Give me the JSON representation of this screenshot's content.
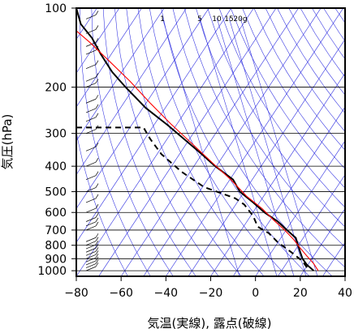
{
  "chart_data": {
    "type": "line",
    "title": "",
    "xlabel": "気温(実線), 露点(破線)",
    "ylabel": "気圧(hPa)",
    "xlim": [
      -80,
      40
    ],
    "ylim": [
      1050,
      100
    ],
    "y_scale": "log",
    "x_ticks": [
      -80,
      -60,
      -40,
      -20,
      0,
      20,
      40
    ],
    "y_ticks": [
      100,
      200,
      300,
      400,
      500,
      600,
      700,
      800,
      900,
      1000
    ],
    "series": [
      {
        "style": "solid",
        "color": "#000000",
        "points": [
          [
            -80,
            100
          ],
          [
            -78,
            115
          ],
          [
            -73,
            130
          ],
          [
            -69,
            150
          ],
          [
            -64,
            175
          ],
          [
            -58,
            200
          ],
          [
            -49,
            240
          ],
          [
            -39,
            280
          ],
          [
            -31,
            320
          ],
          [
            -24,
            360
          ],
          [
            -18,
            400
          ],
          [
            -10,
            450
          ],
          [
            -7,
            500
          ],
          [
            -1,
            550
          ],
          [
            4,
            600
          ],
          [
            10,
            650
          ],
          [
            14,
            700
          ],
          [
            18,
            750
          ],
          [
            19,
            800
          ],
          [
            20,
            850
          ],
          [
            21,
            900
          ],
          [
            23,
            950
          ],
          [
            26,
            1000
          ]
        ]
      },
      {
        "style": "dashed",
        "color": "#000000",
        "points": [
          [
            -80,
            285
          ],
          [
            -50,
            285
          ],
          [
            -47,
            315
          ],
          [
            -42,
            360
          ],
          [
            -33,
            420
          ],
          [
            -23,
            480
          ],
          [
            -9,
            530
          ],
          [
            -5,
            560
          ],
          [
            -1,
            620
          ],
          [
            1,
            680
          ],
          [
            6,
            720
          ],
          [
            10,
            780
          ],
          [
            16,
            850
          ],
          [
            21,
            920
          ],
          [
            24,
            1000
          ]
        ]
      },
      {
        "style": "solid",
        "color": "#ff0000",
        "points": [
          [
            -82,
            118
          ],
          [
            -74,
            135
          ],
          [
            -65,
            160
          ],
          [
            -56,
            190
          ],
          [
            -47,
            230
          ],
          [
            -38,
            275
          ],
          [
            -28,
            330
          ],
          [
            -19,
            390
          ],
          [
            -11,
            450
          ],
          [
            -4,
            520
          ],
          [
            3,
            580
          ],
          [
            8,
            640
          ],
          [
            13,
            700
          ],
          [
            17,
            760
          ],
          [
            20,
            820
          ],
          [
            23,
            880
          ],
          [
            26,
            940
          ],
          [
            28,
            1000
          ]
        ]
      }
    ],
    "mixing_ratio_labels": [
      "1",
      "5",
      "10",
      "15",
      "20g"
    ],
    "wind_barbs_levels": [
      1000,
      975,
      950,
      925,
      900,
      875,
      850,
      825,
      800,
      775,
      700,
      675,
      650,
      600,
      550,
      500,
      450,
      400,
      350,
      300,
      270,
      250,
      230,
      200,
      190,
      170,
      150,
      140,
      125,
      110
    ],
    "colors": {
      "axes": "#000000",
      "grid": "#000000",
      "isotherm": "#2a2ae0",
      "parcel": "#ff0000"
    }
  }
}
